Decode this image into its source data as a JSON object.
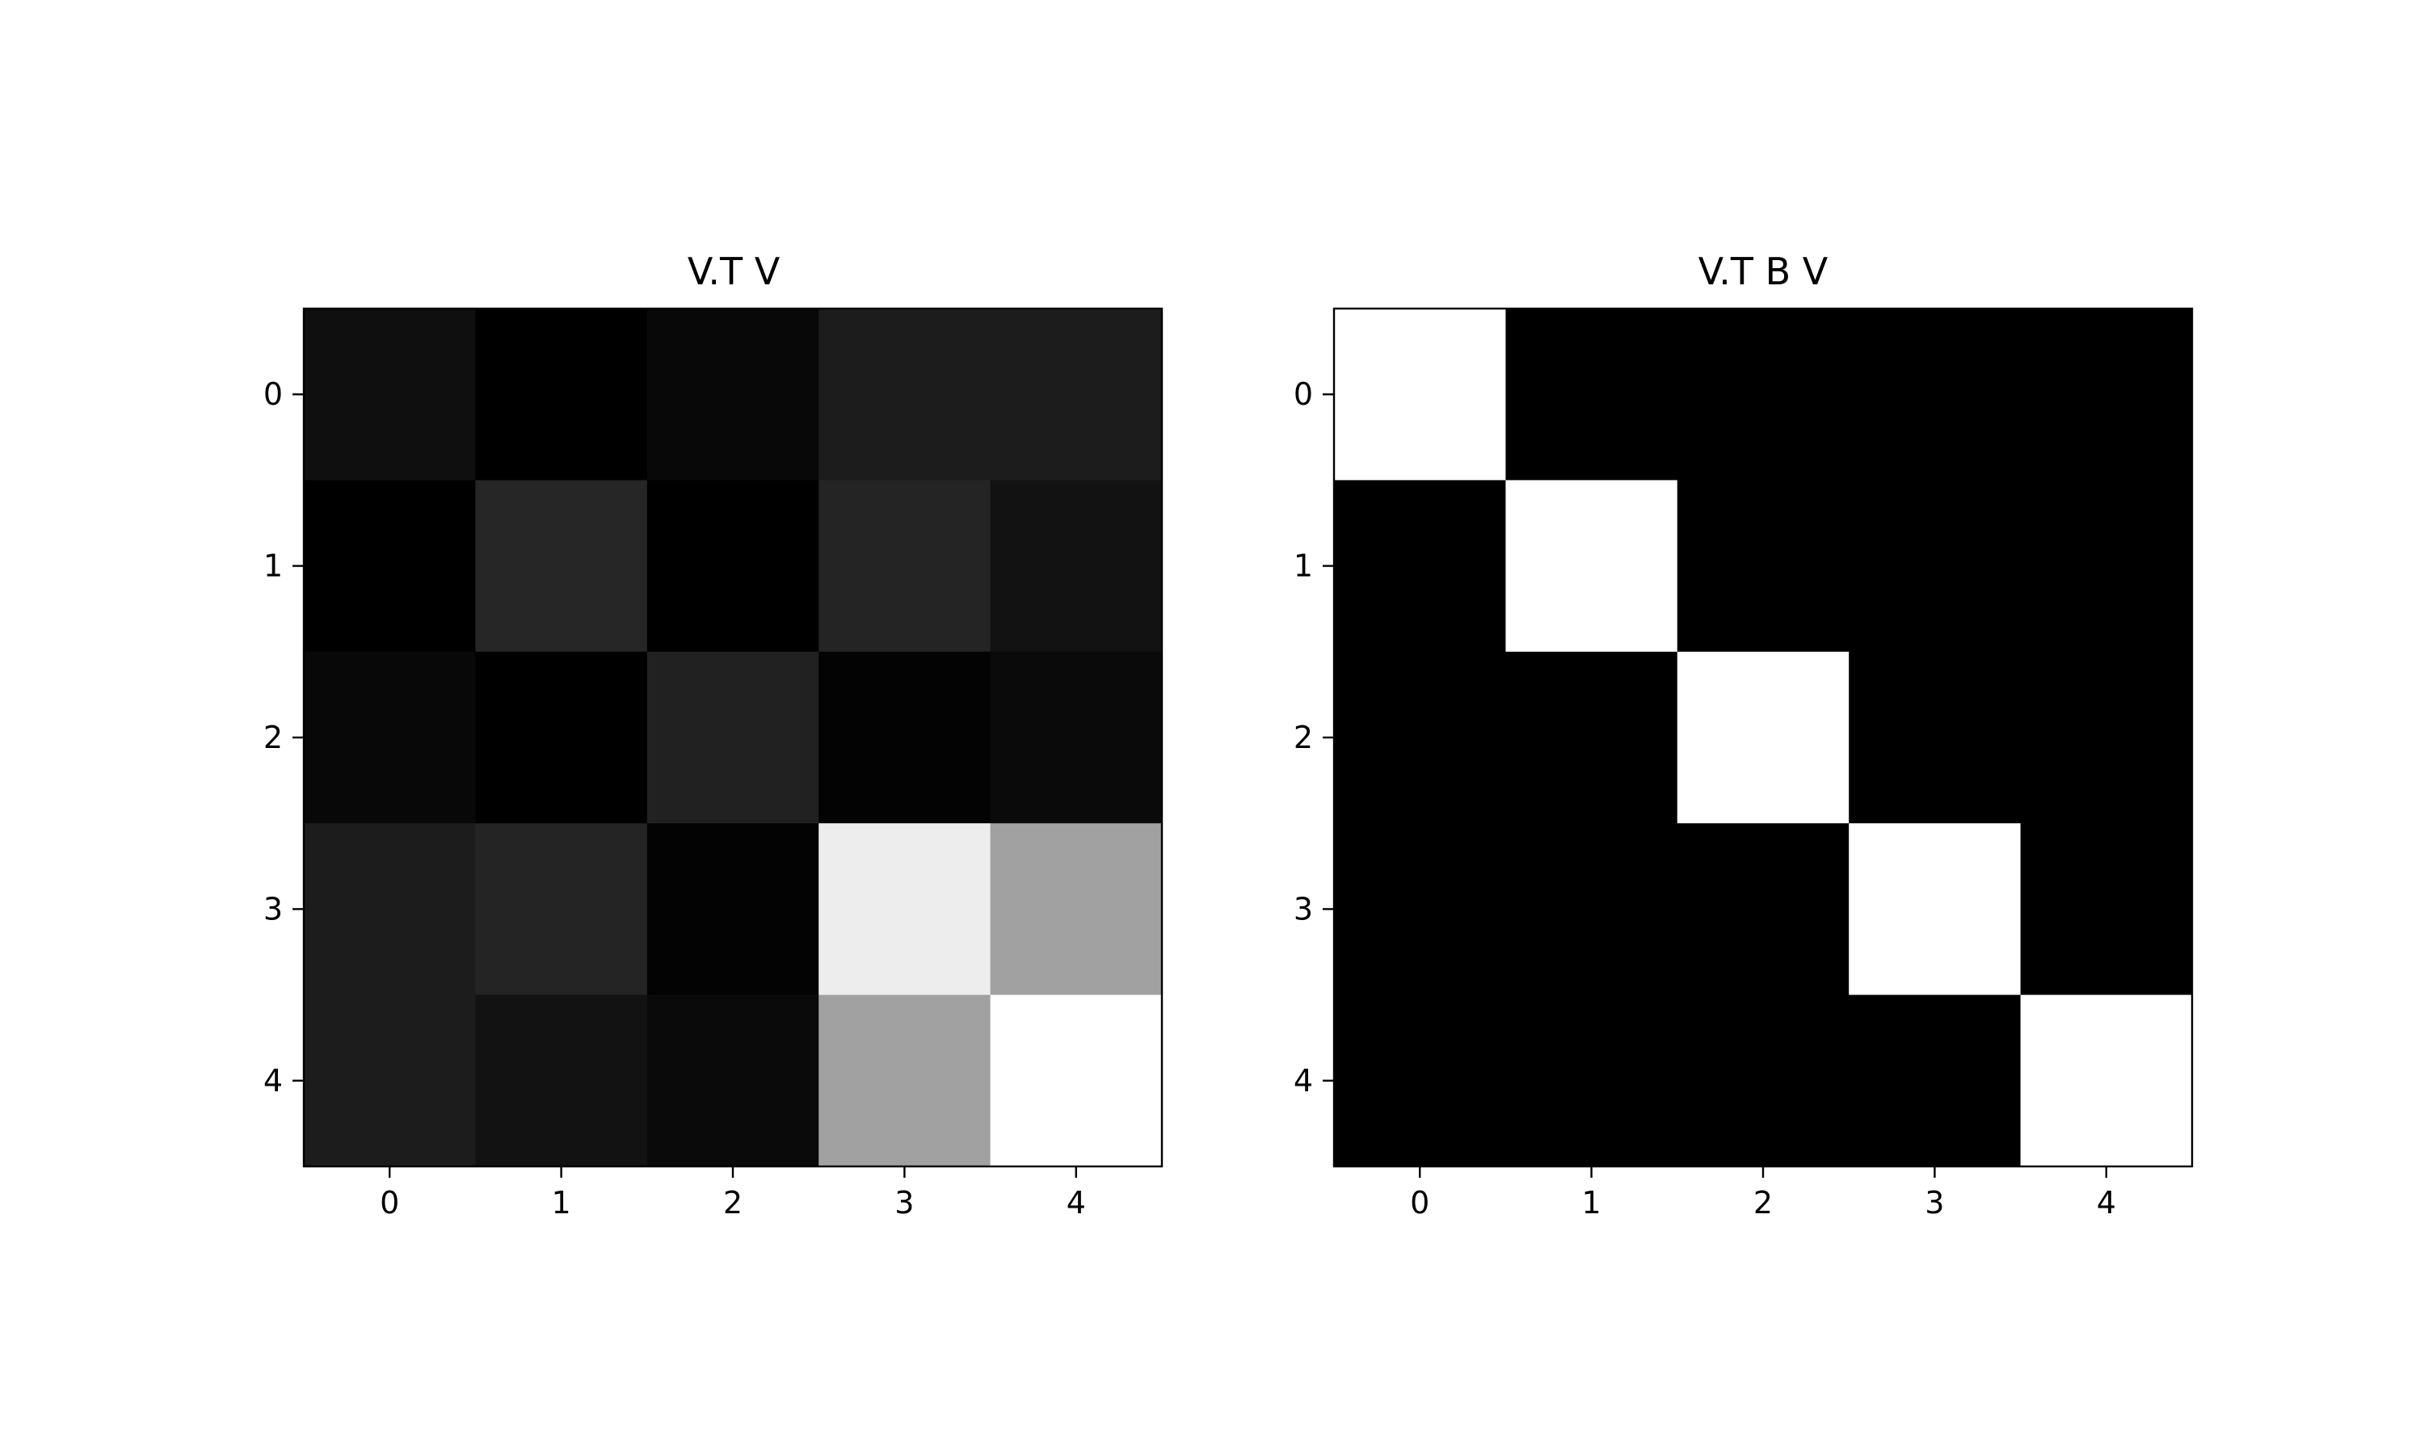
{
  "chart_data": [
    {
      "type": "heatmap",
      "title": "V.T V",
      "xlabel": "",
      "ylabel": "",
      "colormap": "gray",
      "x_ticks": [
        "0",
        "1",
        "2",
        "3",
        "4"
      ],
      "y_ticks": [
        "0",
        "1",
        "2",
        "3",
        "4"
      ],
      "grid": false,
      "value_range": [
        0,
        1
      ],
      "values": [
        [
          0.06,
          0.0,
          0.03,
          0.11,
          0.11
        ],
        [
          0.0,
          0.15,
          0.0,
          0.14,
          0.07
        ],
        [
          0.03,
          0.0,
          0.13,
          0.01,
          0.04
        ],
        [
          0.11,
          0.14,
          0.01,
          0.93,
          0.63
        ],
        [
          0.11,
          0.07,
          0.04,
          0.63,
          1.0
        ]
      ]
    },
    {
      "type": "heatmap",
      "title": "V.T B V",
      "xlabel": "",
      "ylabel": "",
      "colormap": "gray",
      "x_ticks": [
        "0",
        "1",
        "2",
        "3",
        "4"
      ],
      "y_ticks": [
        "0",
        "1",
        "2",
        "3",
        "4"
      ],
      "grid": false,
      "value_range": [
        0,
        1
      ],
      "values": [
        [
          1,
          0,
          0,
          0,
          0
        ],
        [
          0,
          1,
          0,
          0,
          0
        ],
        [
          0,
          0,
          1,
          0,
          0
        ],
        [
          0,
          0,
          0,
          1,
          0
        ],
        [
          0,
          0,
          0,
          0,
          1
        ]
      ]
    }
  ]
}
